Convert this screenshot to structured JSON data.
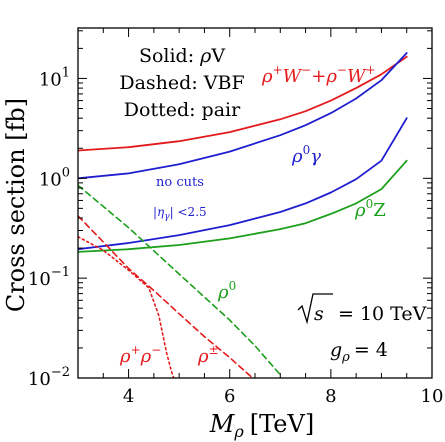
{
  "chart_data": {
    "type": "line",
    "xlabel": "M",
    "xlabel_sub": "ρ",
    "xlabel_unit": "[TeV]",
    "ylabel": "Cross section [fb]",
    "xlim": [
      3,
      10
    ],
    "ylim": [
      0.01,
      32
    ],
    "yscale": "log",
    "x_ticks": [
      4,
      6,
      8,
      10
    ],
    "y_ticks": [
      {
        "value": 0.01,
        "base": "10",
        "exp": "−2"
      },
      {
        "value": 0.1,
        "base": "10",
        "exp": "−1"
      },
      {
        "value": 1,
        "base": "10",
        "exp": "0"
      },
      {
        "value": 10,
        "base": "10",
        "exp": "1"
      }
    ],
    "legend_notes": {
      "solid": "Solid: ρV",
      "dashed": "Dashed: VBF",
      "dotted": "Dotted: pair"
    },
    "conditions": {
      "sqrt_s": "= 10 TeV",
      "g_rho": "= 4"
    },
    "cut_labels": {
      "no_cuts": "no cuts",
      "eta_cut": "<2.5"
    },
    "series": [
      {
        "name": "ρ⁺W⁻+ρ⁻W⁺",
        "style": "solid",
        "color": "#e41a1c",
        "x": [
          3,
          4,
          5,
          6,
          7,
          7.5,
          8,
          8.5,
          9,
          9.5
        ],
        "y": [
          1.9,
          2.05,
          2.35,
          2.9,
          3.9,
          4.7,
          6.0,
          8.0,
          11.0,
          16.5
        ]
      },
      {
        "name": "ρ⁰γ (no cuts)",
        "style": "solid",
        "color": "#1f1fd0",
        "x": [
          3,
          4,
          5,
          6,
          7,
          7.5,
          8,
          8.5,
          9,
          9.5
        ],
        "y": [
          1.0,
          1.12,
          1.38,
          1.85,
          2.7,
          3.4,
          4.5,
          6.3,
          9.6,
          18.0
        ]
      },
      {
        "name": "ρ⁰γ (|η_γ|<2.5)",
        "style": "solid",
        "color": "#1f1fd0",
        "x": [
          3,
          4,
          5,
          6,
          7,
          7.5,
          8,
          8.5,
          9,
          9.5
        ],
        "y": [
          0.195,
          0.225,
          0.27,
          0.34,
          0.46,
          0.56,
          0.72,
          0.98,
          1.5,
          4.0
        ]
      },
      {
        "name": "ρ⁰Z",
        "style": "solid",
        "color": "#1ca01c",
        "x": [
          3,
          4,
          5,
          6,
          7,
          7.5,
          8,
          8.5,
          9,
          9.5
        ],
        "y": [
          0.183,
          0.195,
          0.215,
          0.25,
          0.31,
          0.355,
          0.44,
          0.56,
          0.78,
          1.5
        ]
      },
      {
        "name": "ρ⁰ (VBF)",
        "style": "dashed",
        "color": "#1ca01c",
        "x": [
          3,
          4,
          5,
          6,
          6.5,
          7
        ],
        "y": [
          0.85,
          0.32,
          0.11,
          0.038,
          0.021,
          0.0108
        ]
      },
      {
        "name": "ρ^± (VBF)",
        "style": "dashed",
        "color": "#e41a1c",
        "x": [
          3,
          3.5,
          4,
          4.5,
          5,
          5.5,
          6,
          6.5
        ],
        "y": [
          0.42,
          0.23,
          0.125,
          0.075,
          0.044,
          0.026,
          0.016,
          0.0095
        ]
      },
      {
        "name": "ρ⁺ρ⁻ (pair)",
        "style": "dotted",
        "color": "#e41a1c",
        "x": [
          3,
          3.5,
          4,
          4.4,
          4.6,
          4.75,
          4.85,
          4.9
        ],
        "y": [
          0.26,
          0.19,
          0.12,
          0.08,
          0.042,
          0.018,
          0.0115,
          0.0098
        ]
      }
    ]
  },
  "labels": {
    "solid": "Solid: ρV",
    "dashed": "Dashed: VBF",
    "dotted": "Dotted: pair",
    "series_rhoW": "ρ⁺W⁻+ρ⁻W⁺",
    "series_rho0gamma": "ρ⁰γ",
    "series_rho0Z": "ρ⁰Z",
    "series_rho0": "ρ⁰",
    "series_rhopm": "ρ^±",
    "series_rhopair": "ρ⁺ρ⁻",
    "no_cuts": "no cuts",
    "eta_cut": "<2.5"
  },
  "colors": {
    "red": "#e41a1c",
    "blue": "#1f1fd0",
    "green": "#1ca01c"
  }
}
